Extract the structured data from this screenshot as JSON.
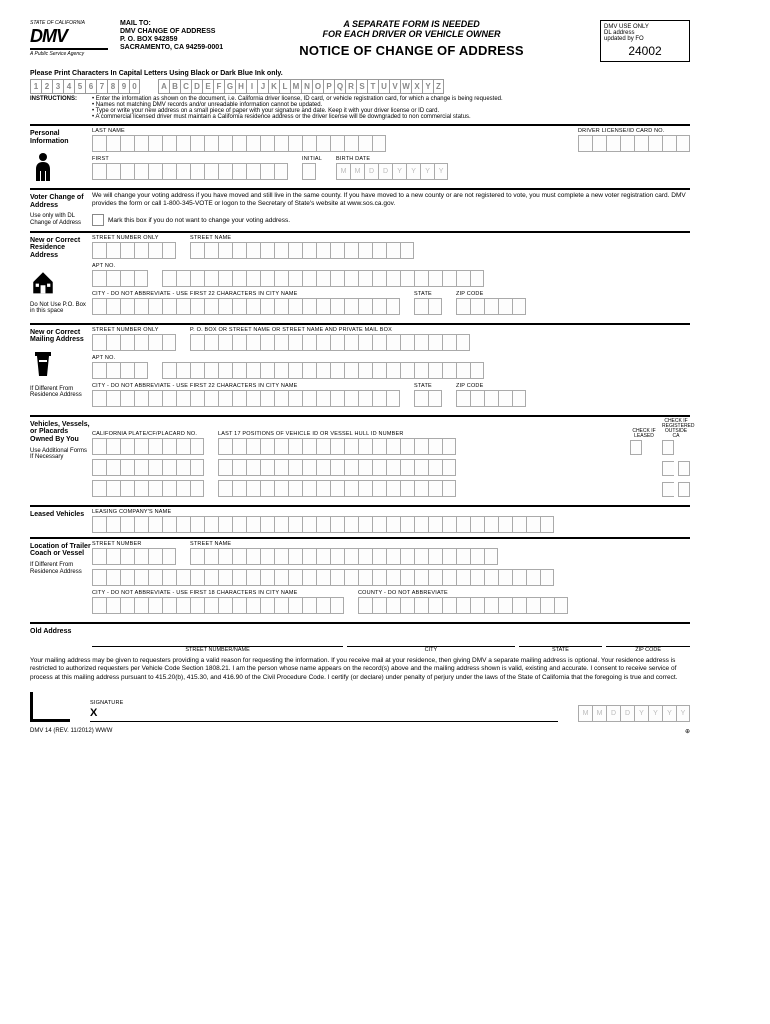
{
  "logo": {
    "text": "DMV",
    "sub1": "STATE OF CALIFORNIA",
    "sub2": "A Public Service Agency"
  },
  "mailto": {
    "label": "MAIL TO:",
    "l1": "DMV CHANGE OF ADDRESS",
    "l2": "P. O. BOX 942859",
    "l3": "SACRAMENTO, CA 94259-0001"
  },
  "title": {
    "top1": "A SEPARATE FORM IS NEEDED",
    "top2": "FOR EACH DRIVER OR VEHICLE OWNER",
    "main": "NOTICE OF CHANGE OF ADDRESS"
  },
  "dmvbox": {
    "l1": "DMV USE ONLY",
    "l2": "DL address",
    "l3": "updated by FO",
    "num": "24002"
  },
  "print_line": "Please Print Characters In Capital Letters Using Black or Dark Blue Ink only.",
  "samples": {
    "nums": [
      "1",
      "2",
      "3",
      "4",
      "5",
      "6",
      "7",
      "8",
      "9",
      "0"
    ],
    "letters": [
      "A",
      "B",
      "C",
      "D",
      "E",
      "F",
      "G",
      "H",
      "I",
      "J",
      "K",
      "L",
      "M",
      "N",
      "O",
      "P",
      "Q",
      "R",
      "S",
      "T",
      "U",
      "V",
      "W",
      "X",
      "Y",
      "Z"
    ]
  },
  "instructions": {
    "label": "INSTRUCTIONS:",
    "items": [
      "Enter the information as shown on the document, i.e. California driver license, ID card, or vehicle registration card, for which a change is being requested.",
      "Names not matching DMV records and/or unreadable information cannot be updated.",
      "Type or write your new address on a small piece of paper with your signature and date. Keep it with your driver license or ID card.",
      "A commercial licensed driver must maintain a California residence address or the driver license will be downgraded to non commercial status."
    ]
  },
  "personal": {
    "title": "Personal Information",
    "last": "LAST NAME",
    "dl": "DRIVER LICENSE/ID CARD NO.",
    "first": "FIRST",
    "initial": "INITIAL",
    "birth": "BIRTH DATE",
    "birth_ph": [
      "M",
      "M",
      "D",
      "D",
      "Y",
      "Y",
      "Y",
      "Y"
    ]
  },
  "voter": {
    "title": "Voter Change of Address",
    "sub": "Use only with DL Change of Address",
    "text": "We will change your voting address if you have moved and still live in the same county. If you have moved to a new county or are not registered to vote, you must complete a new voter registration card. DMV provides the form or call 1-800-345-VOTE or logon to the Secretary of State's website at www.sos.ca.gov.",
    "chk": "Mark this box if you do not want to change your voting address."
  },
  "residence": {
    "title": "New or Correct Residence Address",
    "sub": "Do Not Use P.O. Box in this space",
    "street_num": "STREET NUMBER ONLY",
    "street_name": "STREET NAME",
    "apt": "APT NO.",
    "city": "CITY - DO NOT ABBREVIATE - USE FIRST 22 CHARACTERS IN CITY NAME",
    "state": "STATE",
    "zip": "ZIP CODE"
  },
  "mailing": {
    "title": "New or Correct Mailing Address",
    "sub": "If Different From Residence Address",
    "street_num": "STREET NUMBER ONLY",
    "po": "P. O. BOX OR STREET NAME OR STREET NAME AND PRIVATE MAIL BOX",
    "apt": "APT NO.",
    "city": "CITY - DO NOT ABBREVIATE - USE FIRST 22 CHARACTERS IN CITY NAME",
    "state": "STATE",
    "zip": "ZIP CODE"
  },
  "vehicles": {
    "title": "Vehicles, Vessels, or Placards Owned By You",
    "sub": "Use Additional Forms If Necessary",
    "plate": "CALIFORNIA PLATE/CF/PLACARD NO.",
    "vin": "LAST 17 POSITIONS OF VEHICLE ID OR VESSEL HULL ID NUMBER",
    "chk1a": "CHECK IF",
    "chk1b": "LEASED",
    "chk2a": "CHECK IF",
    "chk2b": "REGISTERED",
    "chk2c": "OUTSIDE CA"
  },
  "leased": {
    "title": "Leased Vehicles",
    "lbl": "LEASING COMPANY'S NAME"
  },
  "trailer": {
    "title": "Location of Trailer Coach or Vessel",
    "sub": "If Different From Residence Address",
    "street_num": "STREET NUMBER",
    "street_name": "STREET NAME",
    "city": "CITY - DO NOT ABBREVIATE - USE FIRST 18 CHARACTERS IN CITY NAME",
    "county": "COUNTY - DO NOT ABBREVIATE"
  },
  "old": {
    "title": "Old Address",
    "street": "STREET NUMBER/NAME",
    "city": "CITY",
    "state": "STATE",
    "zip": "ZIP CODE",
    "disclosure": "Your mailing address may be given to requesters providing a valid reason for requesting the information. If you receive mail at your residence, then giving DMV a separate mailing address is optional. Your residence address is restricted to authorized requesters per Vehicle Code Section 1808.21. I am the person whose name appears on the record(s) above and the mailing address shown is valid, existing and accurate. I consent to receive service of process at this mailing address pursuant to 415.20(b), 415.30, and 416.90 of the Civil Procedure Code. I certify (or declare) under penalty of perjury under the laws of the State of California that the foregoing is true and correct."
  },
  "signature": {
    "lbl": "SIGNATURE",
    "x": "X",
    "date_ph": [
      "M",
      "M",
      "D",
      "D",
      "Y",
      "Y",
      "Y",
      "Y"
    ]
  },
  "footer": {
    "left": "DMV 14 (REV. 11/2012) WWW"
  }
}
